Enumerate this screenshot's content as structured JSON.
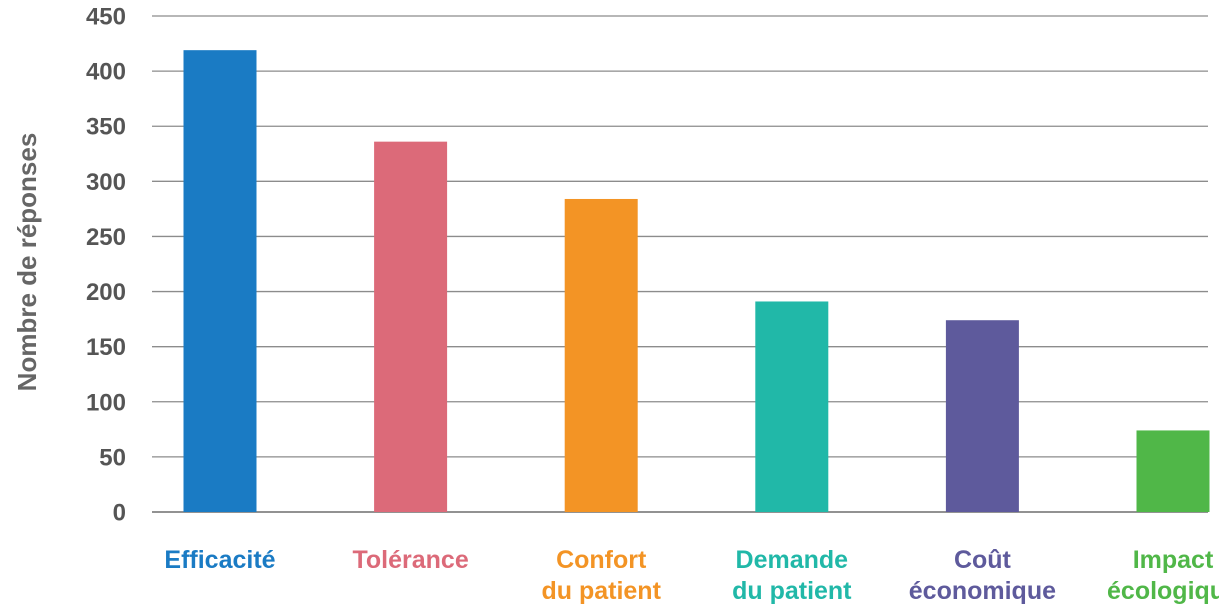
{
  "chart_data": {
    "type": "bar",
    "title": "",
    "xlabel": "",
    "ylabel": "Nombre de réponses",
    "ylim": [
      0,
      450
    ],
    "y_ticks": [
      "0",
      "50",
      "100",
      "150",
      "200",
      "250",
      "300",
      "350",
      "400",
      "450"
    ],
    "grid": true,
    "legend": "none",
    "categories": [
      {
        "lines": [
          "Efficacité"
        ],
        "color": "#1a7bc4"
      },
      {
        "lines": [
          "Tolérance"
        ],
        "color": "#dc6a79"
      },
      {
        "lines": [
          "Confort",
          "du patient"
        ],
        "color": "#f39425"
      },
      {
        "lines": [
          "Demande",
          "du patient"
        ],
        "color": "#21b8a8"
      },
      {
        "lines": [
          "Coût",
          "économique"
        ],
        "color": "#5e5a9c"
      },
      {
        "lines": [
          "Impact",
          "écologique"
        ],
        "color": "#50b748"
      }
    ],
    "values": [
      419,
      336,
      284,
      191,
      174,
      74
    ]
  }
}
